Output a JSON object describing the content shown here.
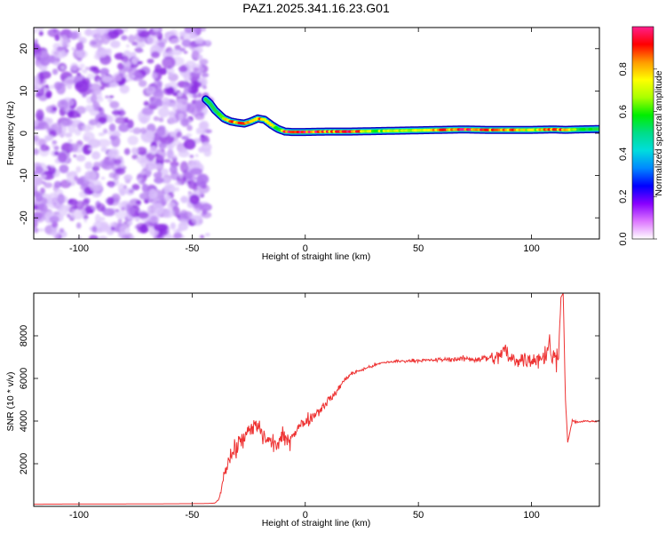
{
  "title": "PAZ1.2025.341.16.23.G01",
  "chart_data": [
    {
      "type": "heatmap",
      "name": "spectrogram",
      "xlabel": "Height of straight line (km)",
      "ylabel": "Frequency (Hz)",
      "xlim": [
        -120,
        130
      ],
      "ylim": [
        -25,
        25
      ],
      "x_ticks": [
        "-100",
        "-50",
        "0",
        "50",
        "100"
      ],
      "y_ticks": [
        "20",
        "10",
        "0",
        "-10",
        "-20"
      ],
      "noise_region_x": [
        -120,
        -43
      ],
      "ridge": {
        "x": [
          -44,
          -42,
          -40,
          -38,
          -36,
          -33,
          -30,
          -27,
          -24,
          -21,
          -18,
          -15,
          -12,
          -9,
          -6,
          -3,
          0,
          10,
          20,
          30,
          40,
          50,
          60,
          70,
          80,
          90,
          100,
          110,
          115,
          120,
          130
        ],
        "freq": [
          8,
          7,
          5.5,
          4.5,
          3.5,
          2.8,
          2.5,
          2.3,
          2.8,
          3.5,
          3.2,
          2,
          1,
          0.4,
          0.3,
          0.3,
          0.3,
          0.4,
          0.4,
          0.5,
          0.6,
          0.7,
          0.8,
          0.9,
          0.8,
          0.8,
          0.8,
          0.9,
          0.8,
          0.9,
          1.0
        ],
        "amplitude": [
          0.3,
          0.4,
          0.5,
          0.6,
          0.7,
          0.85,
          0.95,
          0.95,
          0.8,
          0.85,
          0.8,
          0.7,
          0.6,
          0.9,
          1.0,
          0.9,
          1.0,
          0.9,
          0.95,
          0.7,
          0.65,
          0.75,
          0.85,
          1.0,
          0.9,
          0.85,
          0.75,
          0.85,
          1.0,
          0.6,
          0.5
        ]
      }
    },
    {
      "type": "colorbar",
      "label": "Normalized spectral amplitude",
      "range": [
        0.0,
        1.0
      ],
      "ticks": [
        "0.0",
        "0.2",
        "0.4",
        "0.6",
        "0.8"
      ],
      "colors": [
        "#ffffff",
        "#dd77ff",
        "#8800ff",
        "#0000ff",
        "#0088ff",
        "#00dddd",
        "#00dd88",
        "#00ee00",
        "#aaff00",
        "#ffff00",
        "#ff9900",
        "#ff0000",
        "#ff1f8c"
      ]
    },
    {
      "type": "line",
      "name": "snr",
      "xlabel": "Height of straight line (km)",
      "ylabel": "SNR (10 * v/v)",
      "xlim": [
        -120,
        130
      ],
      "ylim": [
        0,
        10000
      ],
      "x_ticks": [
        "-100",
        "-50",
        "0",
        "50",
        "100"
      ],
      "y_ticks": [
        "2000",
        "4000",
        "6000",
        "8000"
      ],
      "color": "#ee3333",
      "x": [
        -120,
        -100,
        -80,
        -60,
        -45,
        -40,
        -38,
        -36,
        -34,
        -32,
        -30,
        -28,
        -25,
        -22,
        -20,
        -18,
        -15,
        -12,
        -10,
        -8,
        -5,
        -2,
        0,
        3,
        5,
        8,
        10,
        13,
        15,
        18,
        20,
        25,
        30,
        35,
        40,
        45,
        50,
        55,
        60,
        65,
        70,
        75,
        80,
        85,
        88,
        90,
        95,
        100,
        105,
        108,
        110,
        112,
        113,
        114,
        115,
        116,
        117,
        118,
        120,
        125,
        130
      ],
      "y": [
        100,
        110,
        110,
        120,
        130,
        150,
        350,
        1500,
        2200,
        2500,
        2800,
        3200,
        3400,
        3800,
        3600,
        3200,
        3000,
        2900,
        3300,
        3000,
        3500,
        3800,
        4000,
        4200,
        4400,
        4700,
        5000,
        5200,
        5600,
        6000,
        6200,
        6400,
        6600,
        6750,
        6800,
        6820,
        6850,
        6850,
        6880,
        6900,
        6920,
        6900,
        6950,
        6950,
        7400,
        6900,
        6900,
        6900,
        7000,
        7500,
        6800,
        7300,
        9800,
        10000,
        5000,
        3000,
        3500,
        4000,
        3950,
        4000,
        3980
      ],
      "noise": [
        0,
        0,
        0,
        0,
        0,
        0,
        40,
        400,
        450,
        500,
        550,
        550,
        550,
        550,
        500,
        450,
        450,
        400,
        400,
        400,
        400,
        350,
        350,
        300,
        280,
        250,
        220,
        180,
        150,
        120,
        100,
        90,
        80,
        80,
        80,
        80,
        80,
        80,
        100,
        120,
        150,
        170,
        220,
        350,
        500,
        400,
        450,
        450,
        550,
        700,
        700,
        500,
        0,
        0,
        0,
        0,
        80,
        60,
        60,
        50,
        50
      ]
    }
  ]
}
